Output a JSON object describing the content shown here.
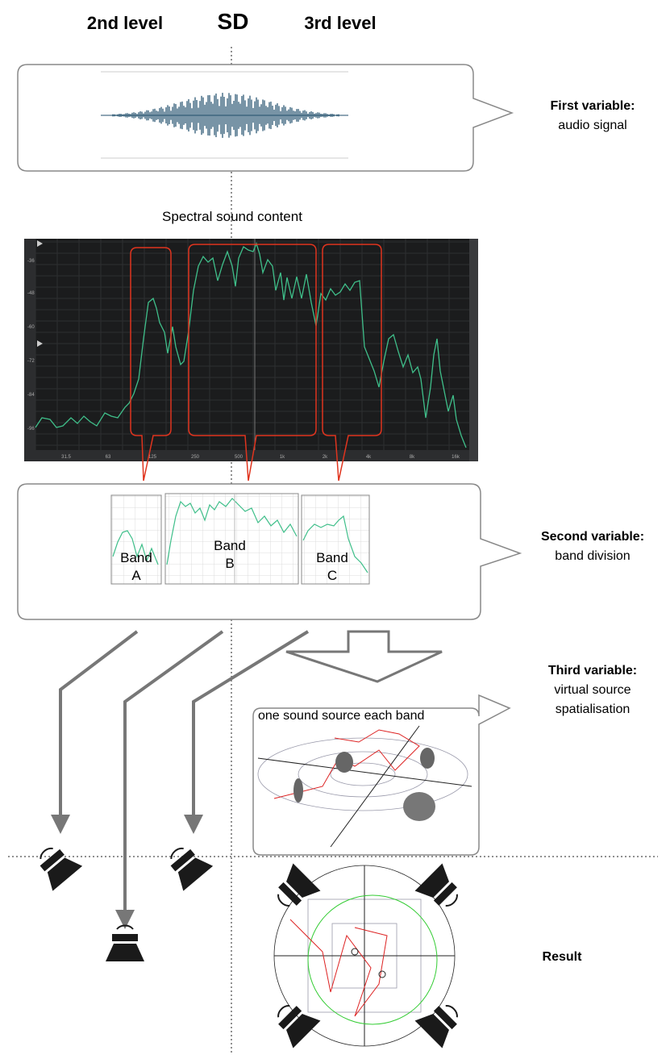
{
  "header": {
    "left": "2nd level",
    "center": "SD",
    "right": "3rd level"
  },
  "spectrum": {
    "title": "Spectral sound content",
    "yticks": [
      "-36",
      "-48",
      "-60",
      "-72",
      "-84",
      "-96"
    ],
    "xticks": [
      "31.5",
      "63",
      "125",
      "250",
      "500",
      "1k",
      "2k",
      "4k",
      "8k",
      "16k"
    ]
  },
  "bands": [
    {
      "word": "Band",
      "letter": "A"
    },
    {
      "word": "Band",
      "letter": "B"
    },
    {
      "word": "Band",
      "letter": "C"
    }
  ],
  "spatial_title": "one sound source each band",
  "variables": [
    {
      "title": "First variable:",
      "lines": [
        "audio signal"
      ]
    },
    {
      "title": "Second variable:",
      "lines": [
        "band division"
      ]
    },
    {
      "title": "Third variable:",
      "lines": [
        "virtual source",
        "spatialisation"
      ]
    }
  ],
  "result": "Result"
}
